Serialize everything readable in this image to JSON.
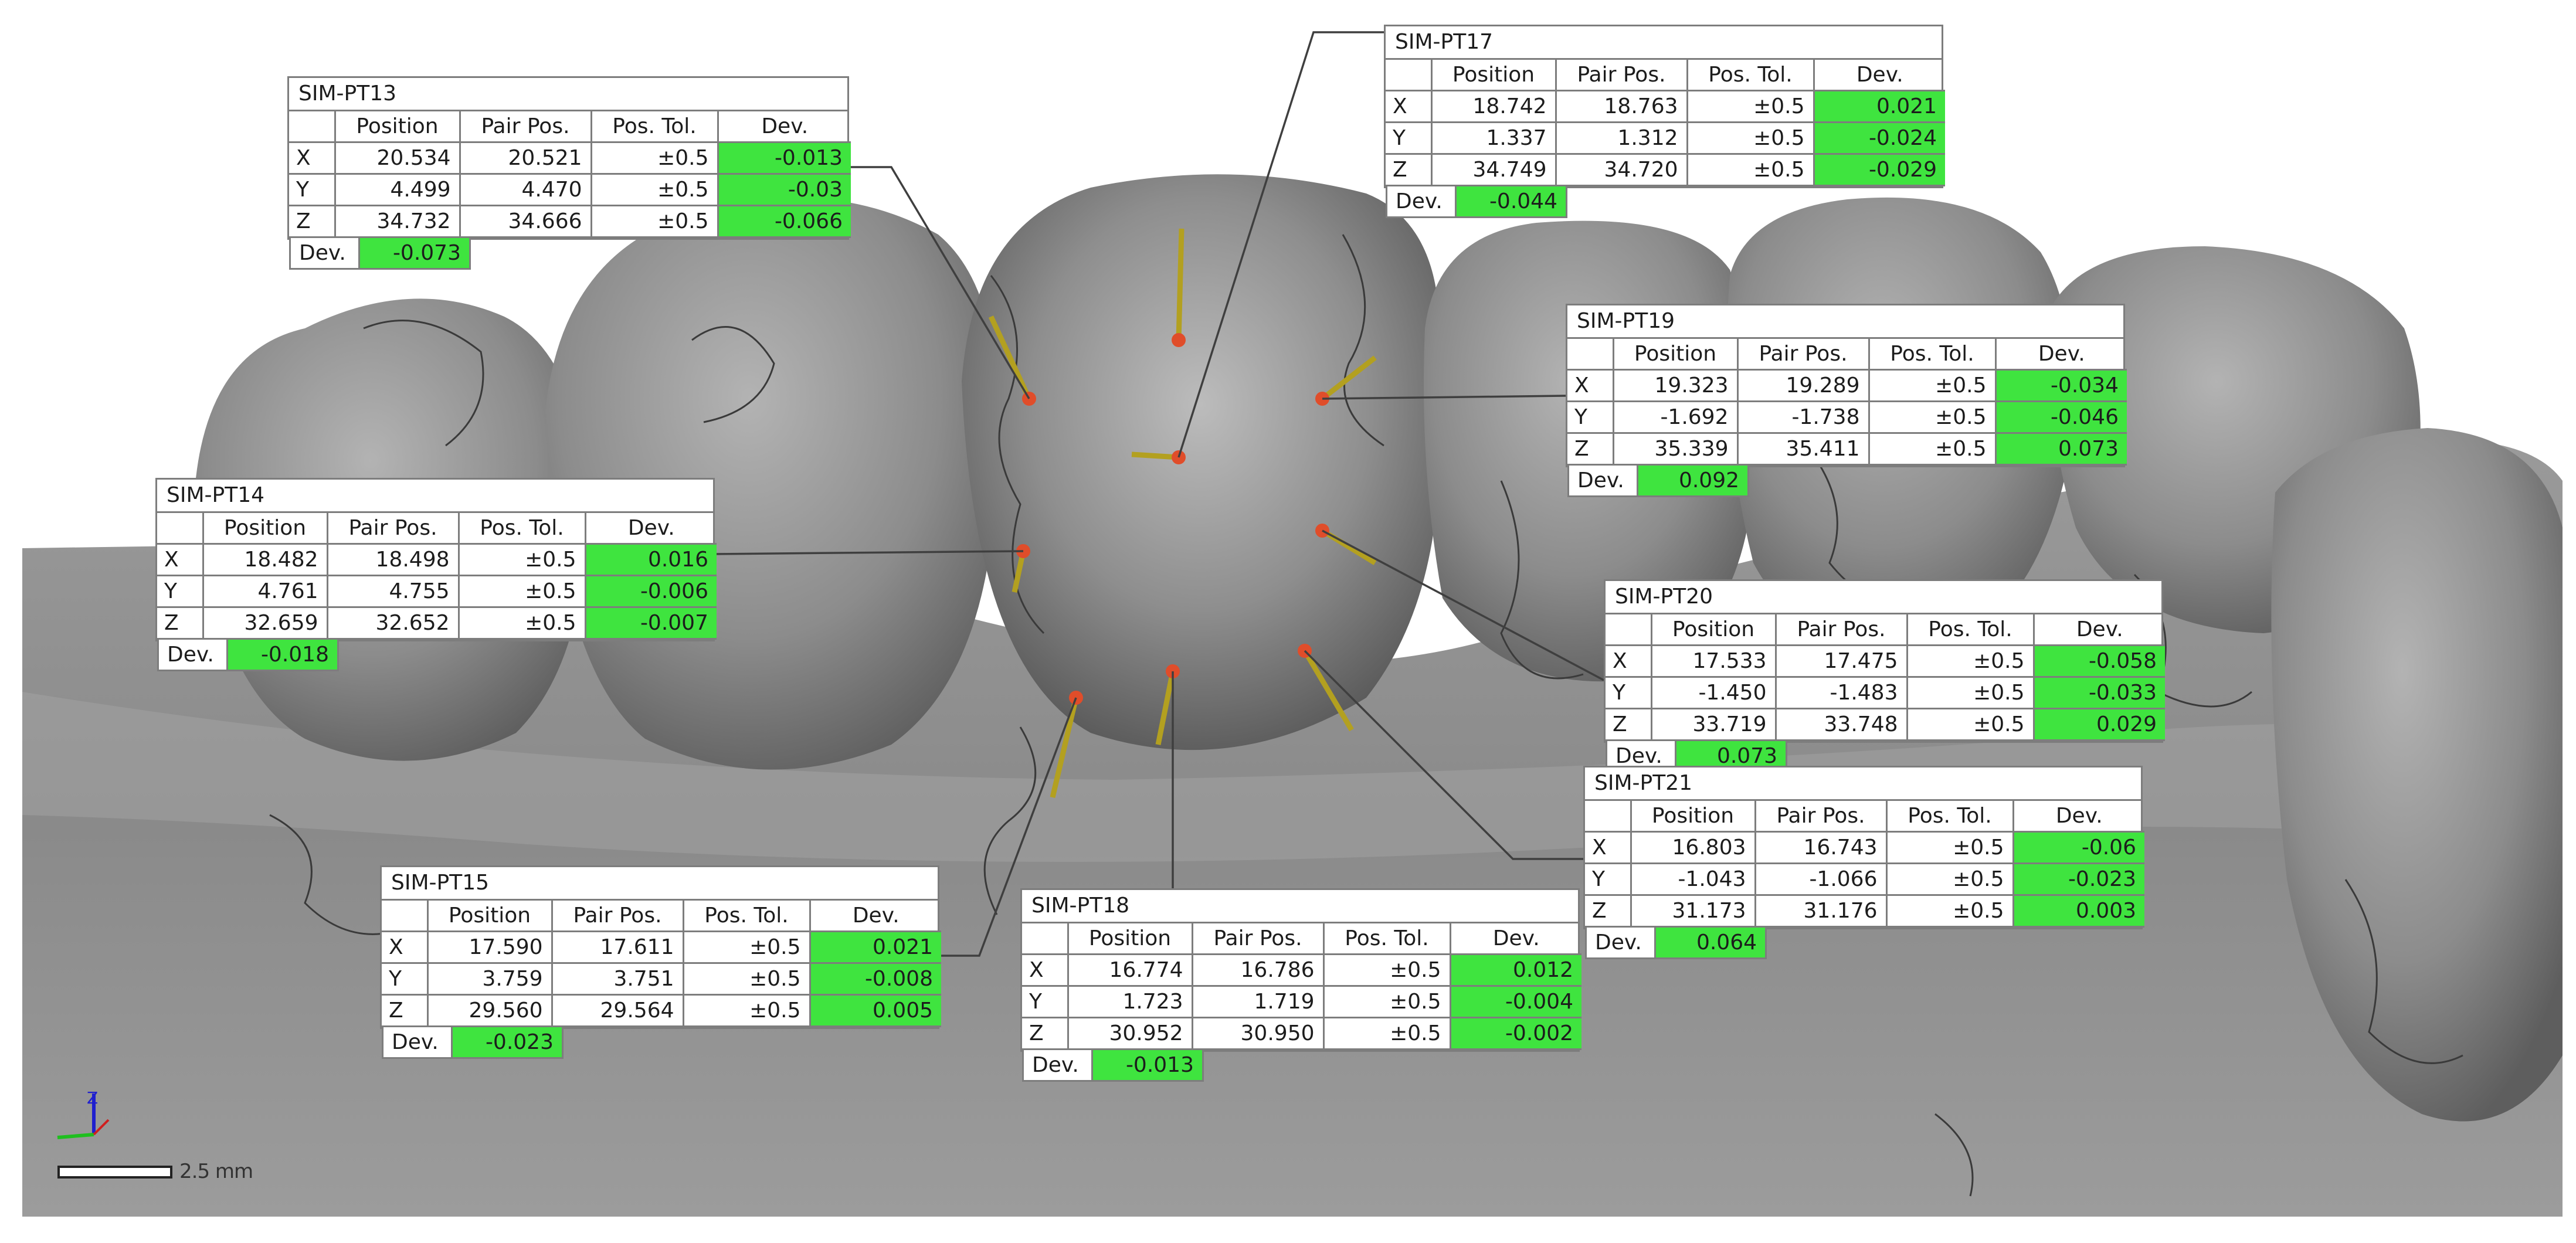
{
  "colors": {
    "dev_ok": "#3fe43f",
    "model_gray": "#8f8f8f",
    "leader": "#444444"
  },
  "columns": [
    "Position",
    "Pair Pos.",
    "Pos. Tol.",
    "Dev."
  ],
  "total_label": "Dev.",
  "scale_bar": {
    "label": "2.5 mm"
  },
  "axis_triad": {
    "icon": "xyz-axis-icon",
    "z_label": "Z"
  },
  "points": [
    {
      "id": "SIM-PT13",
      "rows": [
        {
          "axis": "X",
          "position": "20.534",
          "pair": "20.521",
          "tol": "±0.5",
          "dev": "-0.013"
        },
        {
          "axis": "Y",
          "position": "4.499",
          "pair": "4.470",
          "tol": "±0.5",
          "dev": "-0.03"
        },
        {
          "axis": "Z",
          "position": "34.732",
          "pair": "34.666",
          "tol": "±0.5",
          "dev": "-0.066"
        }
      ],
      "total": "-0.073"
    },
    {
      "id": "SIM-PT17",
      "rows": [
        {
          "axis": "X",
          "position": "18.742",
          "pair": "18.763",
          "tol": "±0.5",
          "dev": "0.021"
        },
        {
          "axis": "Y",
          "position": "1.337",
          "pair": "1.312",
          "tol": "±0.5",
          "dev": "-0.024"
        },
        {
          "axis": "Z",
          "position": "34.749",
          "pair": "34.720",
          "tol": "±0.5",
          "dev": "-0.029"
        }
      ],
      "total": "-0.044"
    },
    {
      "id": "SIM-PT19",
      "rows": [
        {
          "axis": "X",
          "position": "19.323",
          "pair": "19.289",
          "tol": "±0.5",
          "dev": "-0.034"
        },
        {
          "axis": "Y",
          "position": "-1.692",
          "pair": "-1.738",
          "tol": "±0.5",
          "dev": "-0.046"
        },
        {
          "axis": "Z",
          "position": "35.339",
          "pair": "35.411",
          "tol": "±0.5",
          "dev": "0.073"
        }
      ],
      "total": "0.092"
    },
    {
      "id": "SIM-PT14",
      "rows": [
        {
          "axis": "X",
          "position": "18.482",
          "pair": "18.498",
          "tol": "±0.5",
          "dev": "0.016"
        },
        {
          "axis": "Y",
          "position": "4.761",
          "pair": "4.755",
          "tol": "±0.5",
          "dev": "-0.006"
        },
        {
          "axis": "Z",
          "position": "32.659",
          "pair": "32.652",
          "tol": "±0.5",
          "dev": "-0.007"
        }
      ],
      "total": "-0.018"
    },
    {
      "id": "SIM-PT20",
      "rows": [
        {
          "axis": "X",
          "position": "17.533",
          "pair": "17.475",
          "tol": "±0.5",
          "dev": "-0.058"
        },
        {
          "axis": "Y",
          "position": "-1.450",
          "pair": "-1.483",
          "tol": "±0.5",
          "dev": "-0.033"
        },
        {
          "axis": "Z",
          "position": "33.719",
          "pair": "33.748",
          "tol": "±0.5",
          "dev": "0.029"
        }
      ],
      "total": "0.073"
    },
    {
      "id": "SIM-PT21",
      "rows": [
        {
          "axis": "X",
          "position": "16.803",
          "pair": "16.743",
          "tol": "±0.5",
          "dev": "-0.06"
        },
        {
          "axis": "Y",
          "position": "-1.043",
          "pair": "-1.066",
          "tol": "±0.5",
          "dev": "-0.023"
        },
        {
          "axis": "Z",
          "position": "31.173",
          "pair": "31.176",
          "tol": "±0.5",
          "dev": "0.003"
        }
      ],
      "total": "0.064"
    },
    {
      "id": "SIM-PT15",
      "rows": [
        {
          "axis": "X",
          "position": "17.590",
          "pair": "17.611",
          "tol": "±0.5",
          "dev": "0.021"
        },
        {
          "axis": "Y",
          "position": "3.759",
          "pair": "3.751",
          "tol": "±0.5",
          "dev": "-0.008"
        },
        {
          "axis": "Z",
          "position": "29.560",
          "pair": "29.564",
          "tol": "±0.5",
          "dev": "0.005"
        }
      ],
      "total": "-0.023"
    },
    {
      "id": "SIM-PT18",
      "rows": [
        {
          "axis": "X",
          "position": "16.774",
          "pair": "16.786",
          "tol": "±0.5",
          "dev": "0.012"
        },
        {
          "axis": "Y",
          "position": "1.723",
          "pair": "1.719",
          "tol": "±0.5",
          "dev": "-0.004"
        },
        {
          "axis": "Z",
          "position": "30.952",
          "pair": "30.950",
          "tol": "±0.5",
          "dev": "-0.002"
        }
      ],
      "total": "-0.013"
    }
  ]
}
